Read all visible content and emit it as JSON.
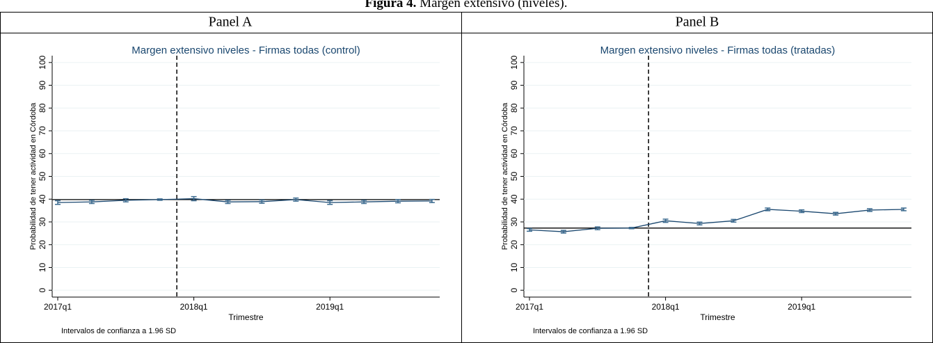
{
  "figure_label": "Figura 4.",
  "figure_title": "Margen extensivo (niveles).",
  "panels": [
    "Panel A",
    "Panel B"
  ],
  "chart_data": [
    {
      "type": "line",
      "title": "Margen extensivo niveles - Firmas todas (control)",
      "categories": [
        "2017q1",
        null,
        null,
        null,
        "2018q1",
        null,
        null,
        null,
        "2019q1",
        null,
        null,
        null
      ],
      "series": [
        {
          "color": "#1a476f",
          "values": [
            38.5,
            38.8,
            39.5,
            39.8,
            40.2,
            38.8,
            38.9,
            39.8,
            38.5,
            38.8,
            39.1,
            39.2
          ],
          "errors": [
            0.8,
            0.7,
            0.7,
            0.3,
            0.9,
            0.7,
            0.7,
            0.7,
            0.8,
            0.7,
            0.7,
            0.7
          ]
        }
      ],
      "hline": 39.8,
      "vline": 3.5,
      "x_label": "Trimestre",
      "y_label": "Probabilidad de tener actividad en Córdoba",
      "note": "Intervalos de confianza a 1.96 SD",
      "ylim": [
        -3,
        103
      ],
      "yticks": [
        0,
        10,
        20,
        30,
        40,
        50,
        60,
        70,
        80,
        90,
        100
      ],
      "grid": true
    },
    {
      "type": "line",
      "title": "Margen extensivo niveles - Firmas todas (tratadas)",
      "categories": [
        "2017q1",
        null,
        null,
        null,
        "2018q1",
        null,
        null,
        null,
        "2019q1",
        null,
        null,
        null
      ],
      "series": [
        {
          "color": "#1a476f",
          "values": [
            26.5,
            25.7,
            27.2,
            27.3,
            30.5,
            29.3,
            30.5,
            35.5,
            34.7,
            33.6,
            35.2,
            35.5
          ],
          "errors": [
            0.6,
            0.6,
            0.6,
            0.3,
            0.7,
            0.6,
            0.6,
            0.6,
            0.6,
            0.6,
            0.6,
            0.6
          ]
        }
      ],
      "hline": 27.3,
      "vline": 3.5,
      "x_label": "Trimestre",
      "y_label": "Probabilidad de tener actividad en Córdoba",
      "note": "Intervalos de confianza a 1.96 SD",
      "ylim": [
        -3,
        103
      ],
      "yticks": [
        0,
        10,
        20,
        30,
        40,
        50,
        60,
        70,
        80,
        90,
        100
      ],
      "grid": true
    }
  ]
}
